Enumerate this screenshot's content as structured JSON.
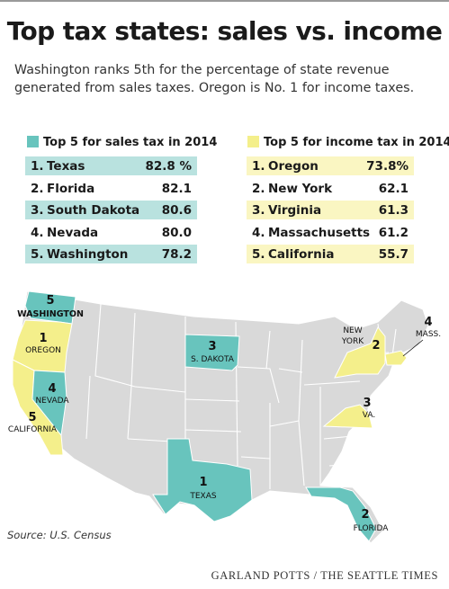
{
  "title": "Top tax states: sales vs. income",
  "subtitle": "Washington ranks 5th for the percentage of state revenue generated from sales taxes. Oregon is No. 1 for income taxes.",
  "colors": {
    "sales": "#68c4bd",
    "income": "#f4ef8b",
    "sales_row": "#b9e2df",
    "income_row": "#faf6c2",
    "other_state": "#d9d9d9",
    "border": "#ffffff"
  },
  "chart_data": [
    {
      "type": "table",
      "title": "Top 5 for sales tax in 2014",
      "rows": [
        {
          "rank": "1.",
          "state": "Texas",
          "value": "82.8 %"
        },
        {
          "rank": "2.",
          "state": "Florida",
          "value": "82.1"
        },
        {
          "rank": "3.",
          "state": "South Dakota",
          "value": "80.6"
        },
        {
          "rank": "4.",
          "state": "Nevada",
          "value": "80.0"
        },
        {
          "rank": "5.",
          "state": "Washington",
          "value": "78.2"
        }
      ]
    },
    {
      "type": "table",
      "title": "Top 5 for income tax in 2014",
      "rows": [
        {
          "rank": "1.",
          "state": "Oregon",
          "value": "73.8%"
        },
        {
          "rank": "2.",
          "state": "New York",
          "value": "62.1"
        },
        {
          "rank": "3.",
          "state": "Virginia",
          "value": "61.3"
        },
        {
          "rank": "4.",
          "state": "Massachusetts",
          "value": "61.2"
        },
        {
          "rank": "5.",
          "state": "California",
          "value": "55.7"
        }
      ]
    }
  ],
  "map": {
    "labels": {
      "washington_rank": "5",
      "washington": "WASHINGTON",
      "oregon_rank": "1",
      "oregon": "OREGON",
      "nevada_rank": "4",
      "nevada": "NEVADA",
      "california_rank": "5",
      "california": "CALIFORNIA",
      "south_dakota_rank": "3",
      "south_dakota": "S. DAKOTA",
      "texas_rank": "1",
      "texas": "TEXAS",
      "florida_rank": "2",
      "florida": "FLORIDA",
      "new_york_1": "NEW",
      "new_york_2": "YORK",
      "new_york_rank": "2",
      "massachusetts_rank": "4",
      "massachusetts": "MASS.",
      "virginia_rank": "3",
      "virginia": "VA."
    }
  },
  "source": "Source: U.S. Census",
  "credit": "GARLAND POTTS / THE SEATTLE TIMES"
}
